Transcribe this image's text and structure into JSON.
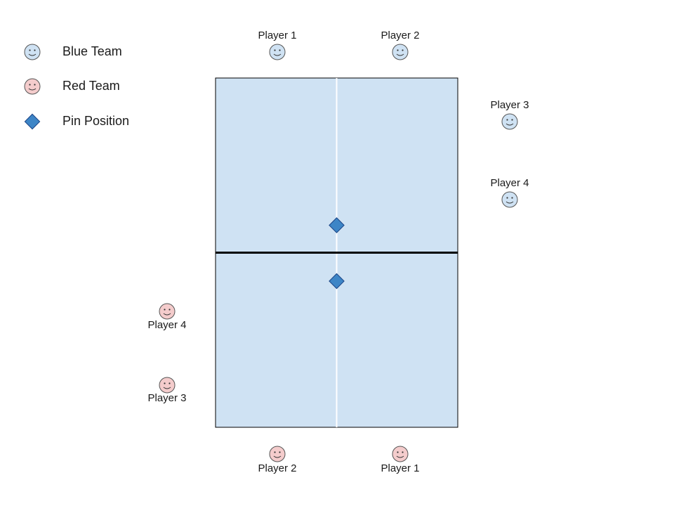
{
  "legend": {
    "blue_team": "Blue Team",
    "red_team": "Red Team",
    "pin_position": "Pin Position"
  },
  "colors": {
    "blue_player_fill": "#cfe2f3",
    "red_player_fill": "#f4cccc",
    "court_fill": "#cfe2f3",
    "pin_fill": "#3d85c6",
    "center_line": "#ffffff",
    "net_line": "#000000"
  },
  "blue_players": {
    "p1": "Player 1",
    "p2": "Player 2",
    "p3": "Player 3",
    "p4": "Player 4"
  },
  "red_players": {
    "p1": "Player 1",
    "p2": "Player 2",
    "p3": "Player 3",
    "p4": "Player 4"
  },
  "icons": {
    "blue_player": "smiley-face-icon",
    "red_player": "smiley-face-icon",
    "pin": "diamond-icon"
  }
}
